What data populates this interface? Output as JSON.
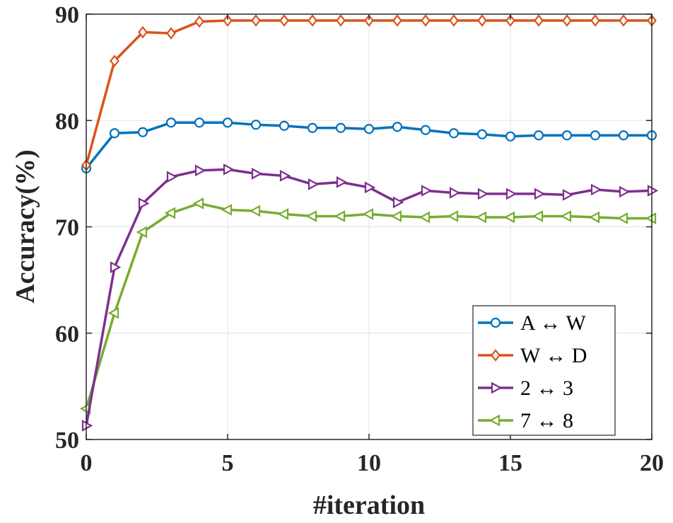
{
  "chart_data": {
    "type": "line",
    "title": "",
    "xlabel": "#iteration",
    "ylabel": "Accuracy(%)",
    "xlim": [
      0,
      20
    ],
    "ylim": [
      50,
      90
    ],
    "xticks": [
      "0",
      "5",
      "10",
      "15",
      "20"
    ],
    "yticks": [
      "50",
      "60",
      "70",
      "80",
      "90"
    ],
    "grid": true,
    "legend_position": "bottom-right",
    "x": [
      0,
      1,
      2,
      3,
      4,
      5,
      6,
      7,
      8,
      9,
      10,
      11,
      12,
      13,
      14,
      15,
      16,
      17,
      18,
      19,
      20
    ],
    "series": [
      {
        "name": "A ↔ W",
        "color": "#0072BD",
        "marker": "circle",
        "values": [
          75.5,
          78.8,
          78.9,
          79.8,
          79.8,
          79.8,
          79.6,
          79.5,
          79.3,
          79.3,
          79.2,
          79.4,
          79.1,
          78.8,
          78.7,
          78.5,
          78.6,
          78.6,
          78.6,
          78.6,
          78.6
        ]
      },
      {
        "name": "W ↔ D",
        "color": "#D95319",
        "marker": "diamond",
        "values": [
          75.8,
          85.6,
          88.3,
          88.2,
          89.3,
          89.4,
          89.4,
          89.4,
          89.4,
          89.4,
          89.4,
          89.4,
          89.4,
          89.4,
          89.4,
          89.4,
          89.4,
          89.4,
          89.4,
          89.4,
          89.4
        ]
      },
      {
        "name": "2 ↔ 3",
        "color": "#7E2F8E",
        "marker": "triangle-right",
        "values": [
          51.3,
          66.2,
          72.2,
          74.7,
          75.3,
          75.4,
          75.0,
          74.8,
          74.0,
          74.2,
          73.7,
          72.3,
          73.4,
          73.2,
          73.1,
          73.1,
          73.1,
          73.0,
          73.5,
          73.3,
          73.4
        ]
      },
      {
        "name": "7 ↔ 8",
        "color": "#77AC30",
        "marker": "triangle-left",
        "values": [
          52.9,
          61.9,
          69.5,
          71.3,
          72.2,
          71.6,
          71.5,
          71.2,
          71.0,
          71.0,
          71.2,
          71.0,
          70.9,
          71.0,
          70.9,
          70.9,
          71.0,
          71.0,
          70.9,
          70.8,
          70.8
        ]
      }
    ]
  }
}
